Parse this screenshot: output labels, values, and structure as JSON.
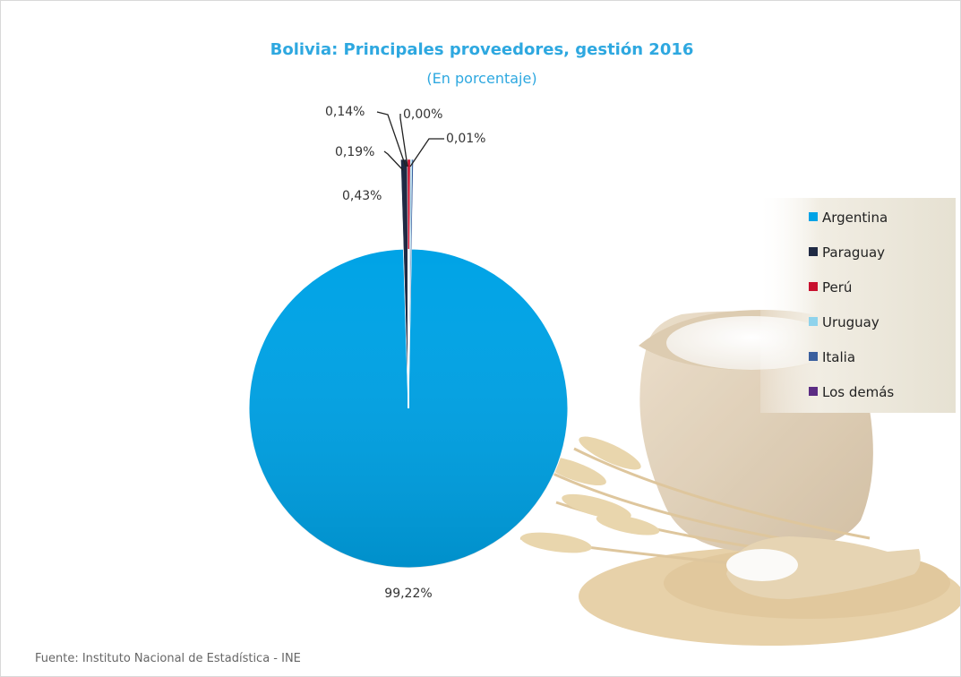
{
  "chart_data": {
    "type": "pie",
    "title": "Bolivia: Principales proveedores, gestión 2016",
    "subtitle": "(En porcentaje)",
    "categories": [
      "Argentina",
      "Paraguay",
      "Perú",
      "Uruguay",
      "Italia",
      "Los demás"
    ],
    "values": [
      99.22,
      0.43,
      0.19,
      0.14,
      0.01,
      0.0
    ],
    "data_labels": [
      "99,22%",
      "0,43%",
      "0,19%",
      "0,14%",
      "0,01%",
      "0,00%"
    ],
    "colors": [
      "#00A3E6",
      "#1F2A44",
      "#C8102E",
      "#8FD3EC",
      "#3A5F9E",
      "#5B2C83"
    ],
    "legend_position": "right",
    "source": "Fuente: Instituto Nacional de Estadística - INE"
  },
  "colors": {
    "title": "#2EA8E0",
    "background_image": "decorative sack of flour with wheat"
  }
}
